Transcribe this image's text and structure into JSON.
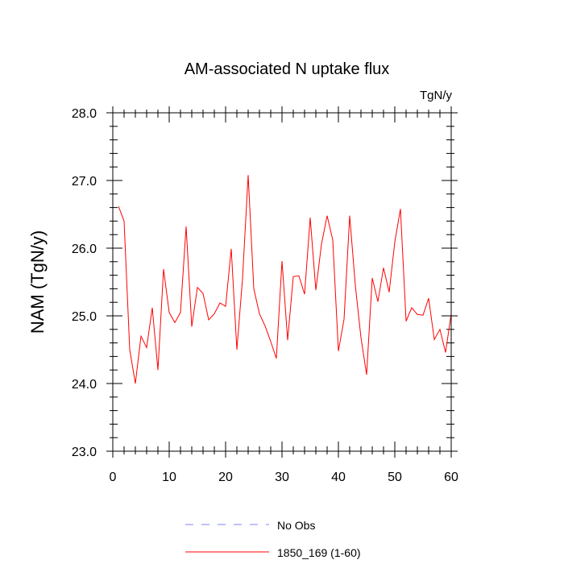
{
  "chart_data": {
    "type": "line",
    "title": "AM-associated N uptake flux",
    "units": "TgN/y",
    "xlabel": "",
    "ylabel": "NAM  (TgN/y)",
    "xlim": [
      0,
      60
    ],
    "ylim": [
      23.0,
      28.0
    ],
    "x_ticks": [
      0,
      10,
      20,
      30,
      40,
      50,
      60
    ],
    "y_ticks": [
      23.0,
      24.0,
      25.0,
      26.0,
      27.0,
      28.0
    ],
    "x_tick_labels": [
      "0",
      "10",
      "20",
      "30",
      "40",
      "50",
      "60"
    ],
    "y_tick_labels": [
      "23.0",
      "24.0",
      "25.0",
      "26.0",
      "27.0",
      "28.0"
    ],
    "grid": false,
    "legend_position": "bottom-center",
    "series": [
      {
        "name": "No Obs",
        "color": "#8080ff",
        "style": "dashed",
        "x": [],
        "values": []
      },
      {
        "name": "1850_169 (1-60)",
        "color": "#ff0000",
        "style": "solid",
        "x": [
          1,
          2,
          3,
          4,
          5,
          6,
          7,
          8,
          9,
          10,
          11,
          12,
          13,
          14,
          15,
          16,
          17,
          18,
          19,
          20,
          21,
          22,
          23,
          24,
          25,
          26,
          27,
          28,
          29,
          30,
          31,
          32,
          33,
          34,
          35,
          36,
          37,
          38,
          39,
          40,
          41,
          42,
          43,
          44,
          45,
          46,
          47,
          48,
          49,
          50,
          51,
          52,
          53,
          54,
          55,
          56,
          57,
          58,
          59,
          60
        ],
        "values": [
          26.62,
          26.4,
          24.5,
          24.0,
          24.7,
          24.53,
          25.12,
          24.2,
          25.69,
          25.05,
          24.9,
          25.05,
          26.32,
          24.84,
          25.42,
          25.33,
          24.94,
          25.03,
          25.19,
          25.14,
          25.99,
          24.5,
          25.55,
          27.08,
          25.4,
          25.03,
          24.85,
          24.62,
          24.37,
          25.81,
          24.64,
          25.58,
          25.59,
          25.32,
          26.45,
          25.38,
          26.06,
          26.48,
          26.12,
          24.48,
          24.95,
          26.48,
          25.45,
          24.68,
          24.13,
          25.56,
          25.21,
          25.71,
          25.35,
          26.09,
          26.58,
          24.92,
          25.12,
          25.02,
          25.01,
          25.26,
          24.65,
          24.8,
          24.46,
          25.03
        ]
      }
    ]
  }
}
